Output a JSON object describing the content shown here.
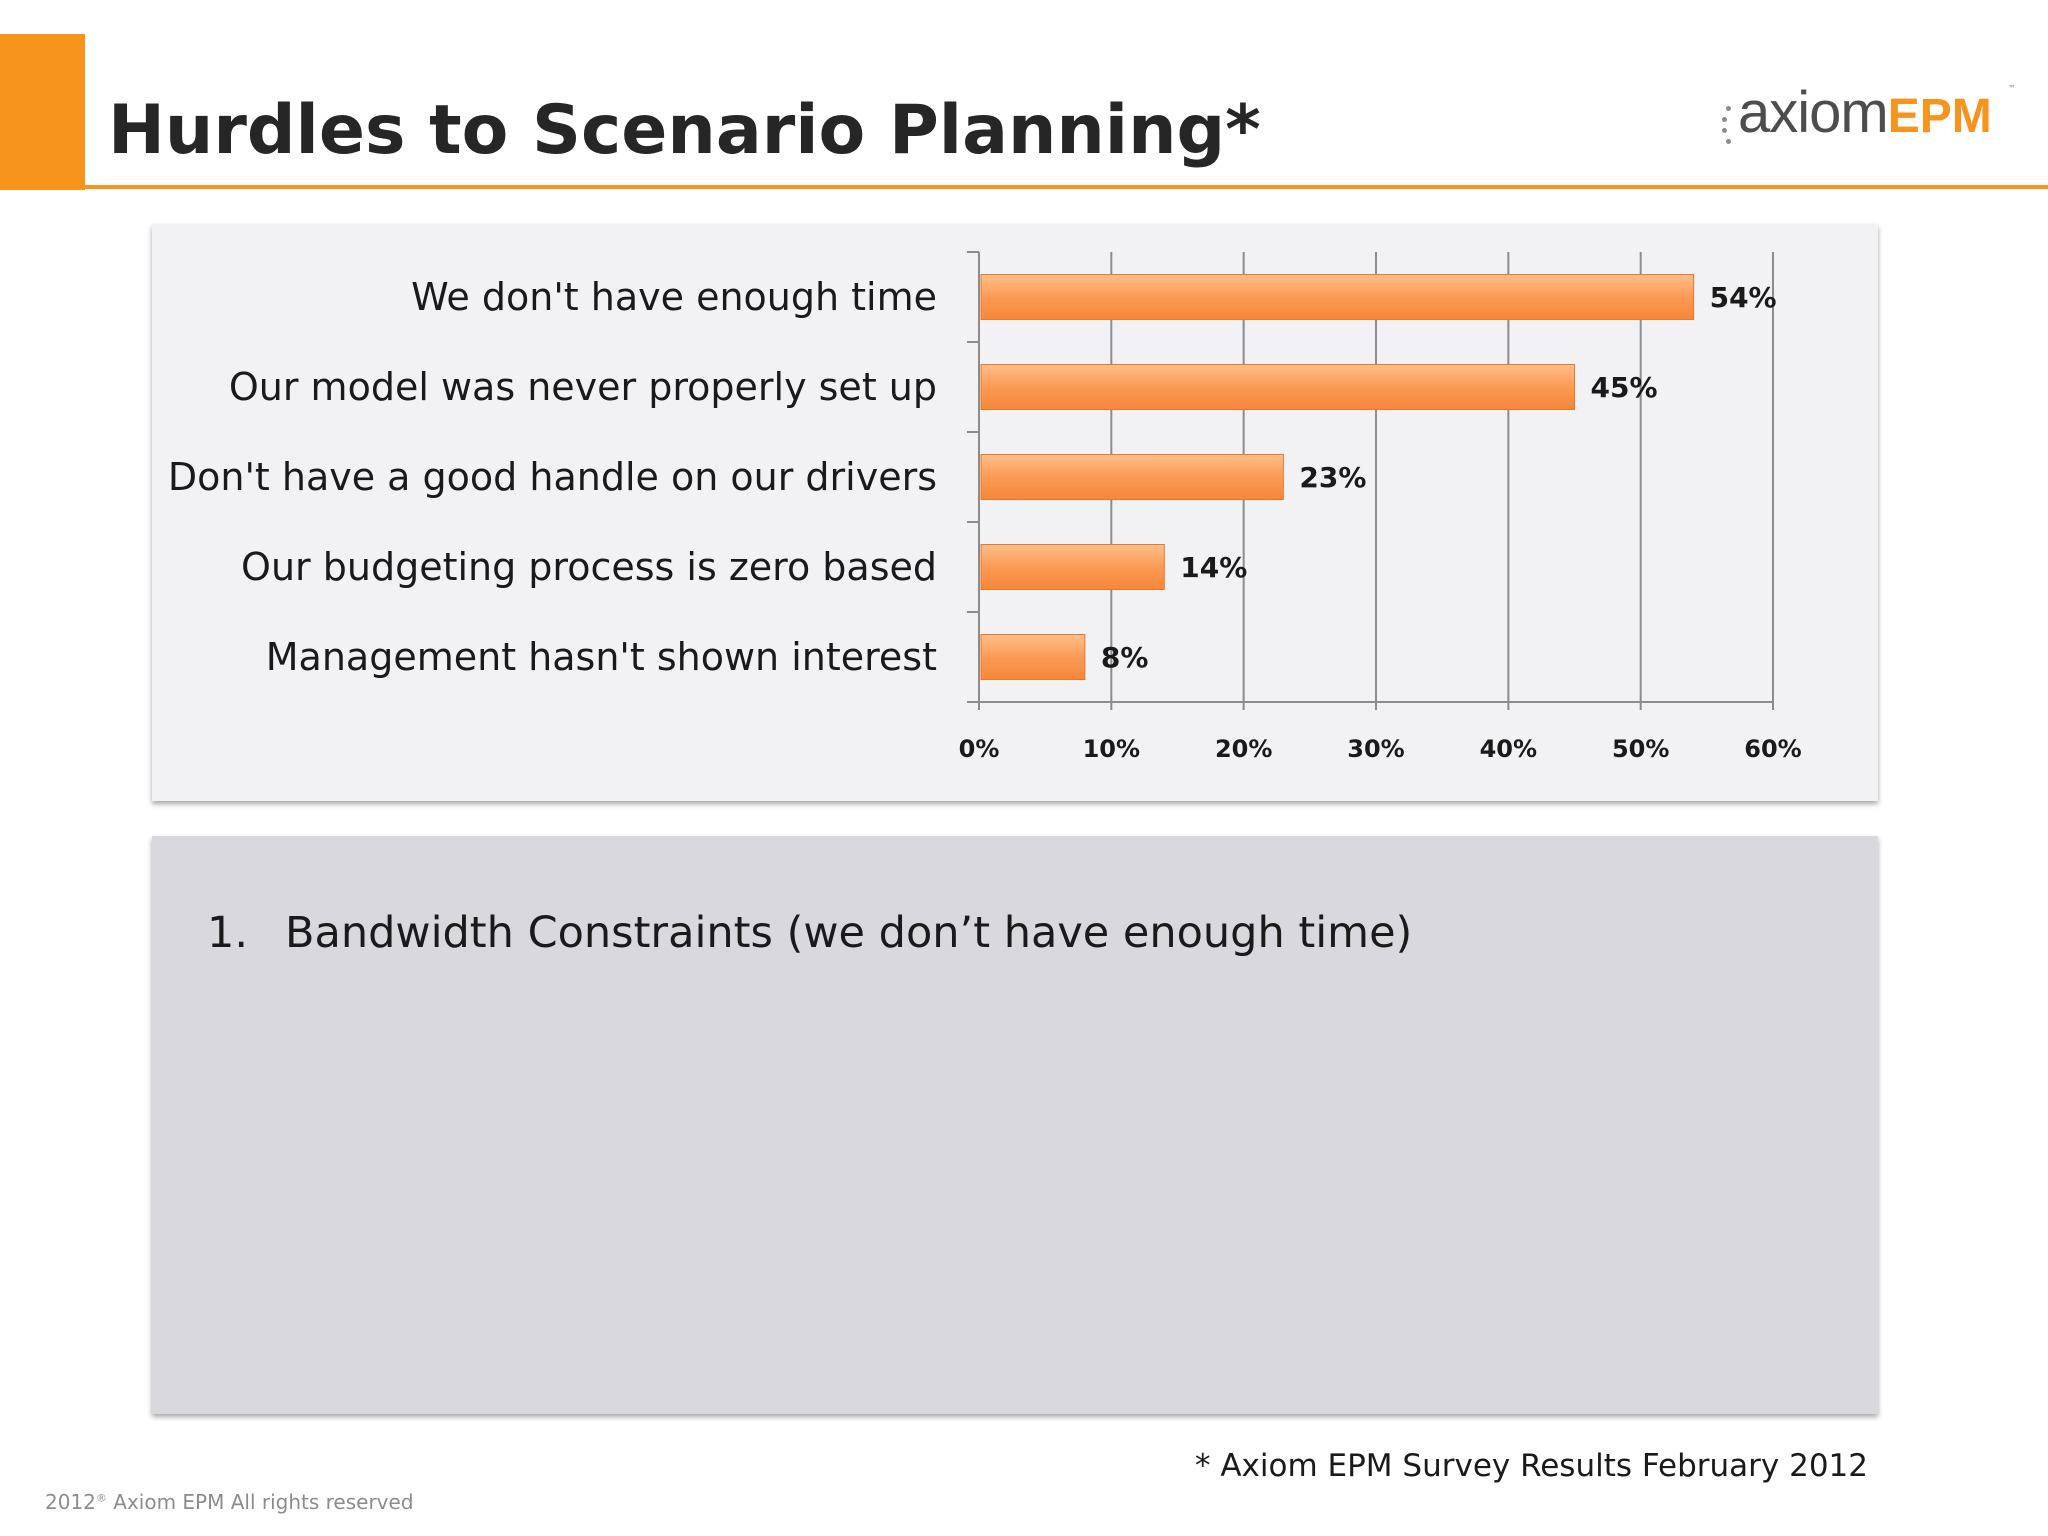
{
  "slide": {
    "title": "Hurdles to Scenario Planning*",
    "source_note": "* Axiom EPM Survey Results February 2012",
    "footer_year": "2012",
    "footer_reg": "®",
    "footer_text": "Axiom EPM  All rights reserved"
  },
  "logo": {
    "part1": "axiom",
    "part2": "EPM",
    "tm": "™"
  },
  "list": [
    {
      "number": "1.",
      "text": "Bandwidth Constraints (we don’t have enough time)"
    }
  ],
  "colors": {
    "accent": "#f7941d",
    "bar": "#fb9a55",
    "chart_bg": "#f2f1f4",
    "panel_bg": "#d9d8dc"
  },
  "chart_data": {
    "type": "bar",
    "orientation": "horizontal",
    "categories": [
      "We don't have enough time",
      "Our model was never properly set up",
      "Don't have a good handle on our drivers",
      "Our budgeting process is zero based",
      "Management hasn't shown interest"
    ],
    "values": [
      54,
      45,
      23,
      14,
      8
    ],
    "value_labels": [
      "54%",
      "45%",
      "23%",
      "14%",
      "8%"
    ],
    "xlim": [
      0,
      60
    ],
    "x_ticks": [
      "0%",
      "10%",
      "20%",
      "30%",
      "40%",
      "50%",
      "60%"
    ],
    "grid": "vertical",
    "legend": "none"
  }
}
